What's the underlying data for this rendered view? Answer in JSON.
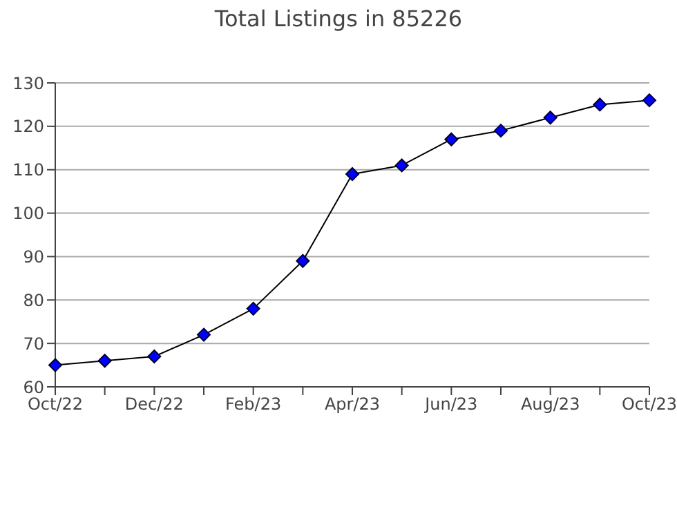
{
  "chart_data": {
    "type": "line",
    "title": "Total Listings in 85226",
    "categories": [
      "Oct/22",
      null,
      "Dec/22",
      null,
      "Feb/23",
      null,
      "Apr/23",
      null,
      "Jun/23",
      null,
      "Aug/23",
      null,
      "Oct/23"
    ],
    "series": [
      {
        "color": "#0000ff",
        "values": [
          65,
          66,
          67,
          72,
          78,
          89,
          109,
          111,
          117,
          119,
          122,
          125,
          126
        ]
      }
    ],
    "ylim": [
      60,
      130
    ],
    "yticks": [
      60,
      70,
      80,
      90,
      100,
      110,
      120,
      130
    ],
    "grid": "y",
    "marker": "diamond",
    "line_style": "solid"
  }
}
